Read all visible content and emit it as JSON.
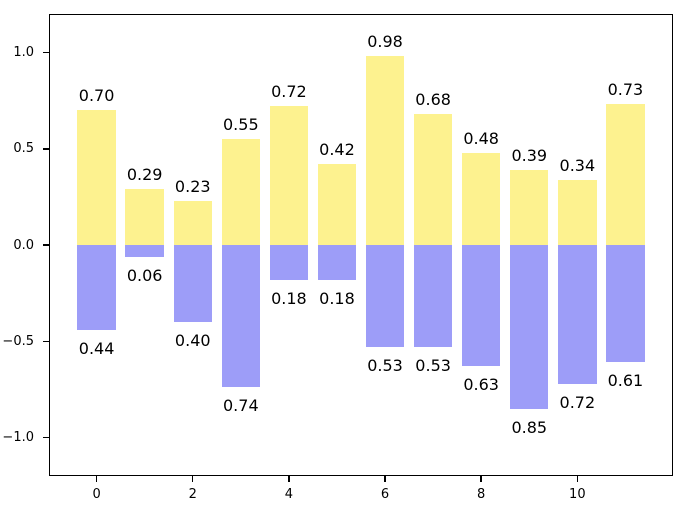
{
  "chart_data": {
    "type": "bar",
    "subtype": "diverging-stacked",
    "title": "",
    "xlabel": "",
    "ylabel": "",
    "grid": false,
    "legend": null,
    "background_color": "#ffffff",
    "frame_color": "#000000",
    "text_color": "#000000",
    "categories": [
      0,
      1,
      2,
      3,
      4,
      5,
      6,
      7,
      8,
      9,
      10,
      11
    ],
    "series": [
      {
        "name": "positive",
        "direction": "up",
        "color": "#fdf28f",
        "values": [
          0.7,
          0.29,
          0.23,
          0.55,
          0.72,
          0.42,
          0.98,
          0.68,
          0.48,
          0.39,
          0.34,
          0.73
        ]
      },
      {
        "name": "negative",
        "direction": "down",
        "color": "#9d9df8",
        "values": [
          0.44,
          0.06,
          0.4,
          0.74,
          0.18,
          0.18,
          0.53,
          0.53,
          0.63,
          0.85,
          0.72,
          0.61
        ]
      }
    ],
    "bar_labels": {
      "positive": [
        "0.70",
        "0.29",
        "0.23",
        "0.55",
        "0.72",
        "0.42",
        "0.98",
        "0.68",
        "0.48",
        "0.39",
        "0.34",
        "0.73"
      ],
      "negative": [
        "0.44",
        "0.06",
        "0.40",
        "0.74",
        "0.18",
        "0.18",
        "0.53",
        "0.53",
        "0.63",
        "0.85",
        "0.72",
        "0.61"
      ]
    },
    "bar_width": 0.8,
    "xlim": [
      -0.99,
      11.99
    ],
    "ylim": [
      -1.2,
      1.2
    ],
    "x_ticks": {
      "values": [
        0,
        2,
        4,
        6,
        8,
        10
      ],
      "labels": [
        "0",
        "2",
        "4",
        "6",
        "8",
        "10"
      ]
    },
    "y_ticks": {
      "values": [
        1.0,
        0.5,
        0.0,
        -0.5,
        -1.0
      ],
      "labels": [
        "1.0",
        "0.5",
        "0.0",
        "−0.5",
        "−1.0"
      ]
    }
  }
}
